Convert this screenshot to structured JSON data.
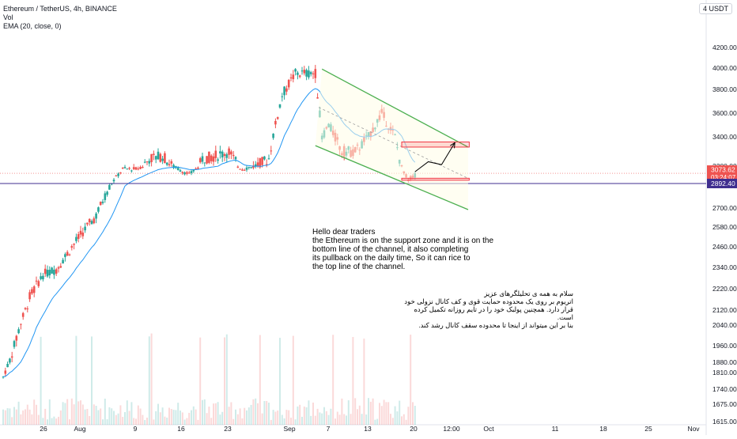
{
  "header": {
    "symbol_title": "Ethereum / TetherUS, 4h, BINANCE",
    "volume_label": "Vol",
    "indicator_label": "EMA (20, close, 0)",
    "currency": "4 USDT"
  },
  "annotations": {
    "english_note": "Hello dear traders\nthe Ethereum is on the support zone and it is on the\nbottom line of the channel, it also completing\nits pullback on the daily time, So it can rice to\nthe top line of the channel.",
    "persian_note": "سلام به همه ی تحلیلگرهای عزیز\nاتریوم بر روی یک محدوده حمایت قوی و کف کانال نزولی خود\nقرار دارد. همچنین پولبک خود را در تایم روزانه تکمیل کرده است.\nبنا بر این میتواند از اینجا تا محدوده سقف کانال رشد کند."
  },
  "price_badges": {
    "last_price": "3073.62",
    "countdown": "03:24:07",
    "level_price": "2892.40"
  },
  "colors": {
    "bull": "#26a69a",
    "bear": "#ef5350",
    "ema": "#2196f3",
    "channel": "#4caf50",
    "zone": "#f23645",
    "level_line": "#3f2e8f",
    "last_price_line": "#ef5350",
    "text": "#131722"
  },
  "chart_data": {
    "type": "candlestick",
    "title": "Ethereum / TetherUS, 4h, BINANCE",
    "series": [
      {
        "name": "Vol",
        "type": "volume"
      },
      {
        "name": "EMA (20, close, 0)",
        "type": "line"
      }
    ],
    "y_axis": {
      "ticks": [
        "4200.00",
        "4000.00",
        "3800.00",
        "3600.00",
        "3400.00",
        "3200.00",
        "2850.00",
        "2700.00",
        "2580.00",
        "2460.00",
        "2340.00",
        "2220.00",
        "2120.00",
        "2040.00",
        "1960.00",
        "1880.00",
        "1810.00",
        "1740.00",
        "1675.00",
        "1615.00"
      ],
      "range": [
        1600,
        4300
      ]
    },
    "x_axis": {
      "ticks": [
        "26",
        "Aug",
        "9",
        "16",
        "23",
        "Sep",
        "7",
        "13",
        "20",
        "12:00",
        "Oct",
        "11",
        "18",
        "25",
        "Nov"
      ]
    },
    "price_path": [
      [
        "Jul 21",
        1790
      ],
      [
        "Jul 23",
        1990
      ],
      [
        "Jul 25",
        2180
      ],
      [
        "Jul 27",
        2300
      ],
      [
        "Jul 29",
        2330
      ],
      [
        "Jul 31",
        2440
      ],
      [
        "Aug 2",
        2550
      ],
      [
        "Aug 4",
        2650
      ],
      [
        "Aug 6",
        2850
      ],
      [
        "Aug 8",
        3150
      ],
      [
        "Aug 10",
        3150
      ],
      [
        "Aug 12",
        3250
      ],
      [
        "Aug 14",
        3270
      ],
      [
        "Aug 16",
        3170
      ],
      [
        "Aug 18",
        3050
      ],
      [
        "Aug 20",
        3250
      ],
      [
        "Aug 22",
        3270
      ],
      [
        "Aug 24",
        3300
      ],
      [
        "Aug 26",
        3150
      ],
      [
        "Aug 28",
        3200
      ],
      [
        "Aug 30",
        3250
      ],
      [
        "Sep 1",
        3750
      ],
      [
        "Sep 3",
        3950
      ],
      [
        "Sep 6",
        3950
      ],
      [
        "Sep 7",
        3400
      ],
      [
        "Sep 8",
        3500
      ],
      [
        "Sep 10",
        3300
      ],
      [
        "Sep 12",
        3300
      ],
      [
        "Sep 14",
        3400
      ],
      [
        "Sep 16",
        3600
      ],
      [
        "Sep 18",
        3400
      ],
      [
        "Sep 20",
        2950
      ],
      [
        "Sep 21",
        3074
      ]
    ],
    "last_price": 3073.62,
    "horizontal_level": 2892.4,
    "annotations": {
      "descending_channel": {
        "upper": [
          [
            "Sep 7",
            3990
          ],
          [
            "Sep 29",
            3330
          ]
        ],
        "lower": [
          [
            "Sep 6",
            3340
          ],
          [
            "Sep 29",
            2690
          ]
        ]
      },
      "resistance_zone": {
        "from": 3330,
        "to": 3365
      },
      "support_zone": {
        "from": 2950,
        "to": 2985
      },
      "projection_path": [
        [
          "Sep 21",
          3100
        ],
        [
          "Sep 23",
          3230
        ],
        [
          "Sep 25",
          3210
        ],
        [
          "Sep 27",
          3360
        ]
      ]
    }
  }
}
